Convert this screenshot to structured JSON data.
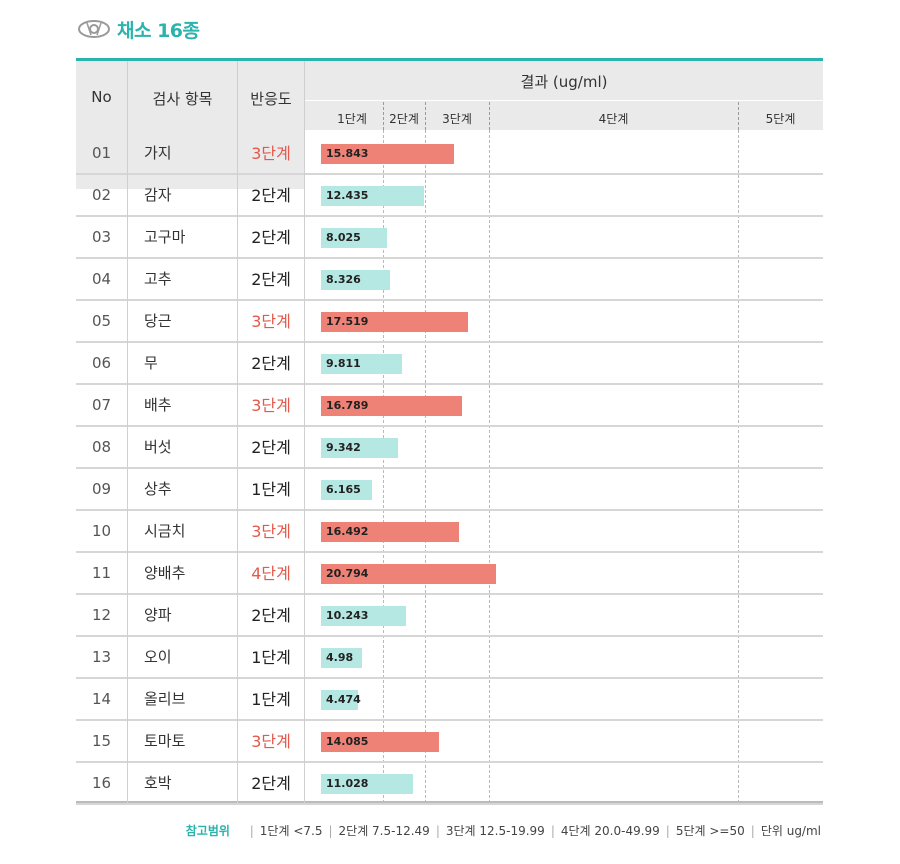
{
  "heading": {
    "title": "채소 16종"
  },
  "table": {
    "col_no": "No",
    "col_item": "검사 항목",
    "col_reaction": "반응도",
    "col_result": "결과 (ug/ml)",
    "stages": [
      "1단계",
      "2단계",
      "3단계",
      "4단계",
      "5단계"
    ]
  },
  "chart_data": {
    "type": "bar",
    "orientation": "horizontal",
    "unit": "ug/ml",
    "stage_thresholds": [
      7.5,
      12.5,
      20.0,
      50
    ],
    "categories": [
      "가지",
      "감자",
      "고구마",
      "고추",
      "당근",
      "무",
      "배추",
      "버섯",
      "상추",
      "시금치",
      "양배추",
      "양파",
      "오이",
      "올리브",
      "토마토",
      "호박"
    ],
    "values": [
      15.843,
      12.435,
      8.025,
      8.326,
      17.519,
      9.811,
      16.789,
      9.342,
      6.165,
      16.492,
      20.794,
      10.243,
      4.98,
      4.474,
      14.085,
      11.028
    ],
    "value_labels": [
      "15.843",
      "12.435",
      "8.025",
      "8.326",
      "17.519",
      "9.811",
      "16.789",
      "9.342",
      "6.165",
      "16.492",
      "20.794",
      "10.243",
      "4.98",
      "4.474",
      "14.085",
      "11.028"
    ],
    "numbers": [
      "01",
      "02",
      "03",
      "04",
      "05",
      "06",
      "07",
      "08",
      "09",
      "10",
      "11",
      "12",
      "13",
      "14",
      "15",
      "16"
    ],
    "reactions": [
      "3단계",
      "2단계",
      "2단계",
      "2단계",
      "3단계",
      "2단계",
      "3단계",
      "2단계",
      "1단계",
      "3단계",
      "4단계",
      "2단계",
      "1단계",
      "1단계",
      "3단계",
      "2단계"
    ],
    "colors": {
      "low": "#b5e7e3",
      "high": "#ef8276",
      "high_text": "#e4594c",
      "accent": "#2bb3ad"
    }
  },
  "footer": {
    "ref_label": "참고범위",
    "ranges": [
      "1단계 <7.5",
      "2단계 7.5-12.49",
      "3단계 12.5-19.99",
      "4단계 20.0-49.99",
      "5단계 >=50",
      "단위 ug/ml"
    ]
  }
}
